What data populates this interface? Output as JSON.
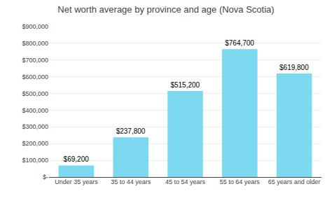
{
  "chart_data": {
    "type": "bar",
    "title": "Net worth average by province and age (Nova Scotia)",
    "categories": [
      "Under 35 years",
      "35 to 44 years",
      "45 to 54 years",
      "55 to 64 years",
      "65 years and older"
    ],
    "values": [
      69200,
      237800,
      515200,
      764700,
      619800
    ],
    "value_labels": [
      "$69,200",
      "$237,800",
      "$515,200",
      "$764,700",
      "$619,800"
    ],
    "data_labels": true,
    "color": "#7DD9F0",
    "ylim": [
      0,
      900000
    ],
    "yticks": [
      {
        "value": 0,
        "label": "$-"
      },
      {
        "value": 100000,
        "label": "$100,000"
      },
      {
        "value": 200000,
        "label": "$200,000"
      },
      {
        "value": 300000,
        "label": "$300,000"
      },
      {
        "value": 400000,
        "label": "$400,000"
      },
      {
        "value": 500000,
        "label": "$500,000"
      },
      {
        "value": 600000,
        "label": "$600,000"
      },
      {
        "value": 700000,
        "label": "$700,000"
      },
      {
        "value": 800000,
        "label": "$800,000"
      },
      {
        "value": 900000,
        "label": "$900,000"
      }
    ],
    "grid": true
  }
}
